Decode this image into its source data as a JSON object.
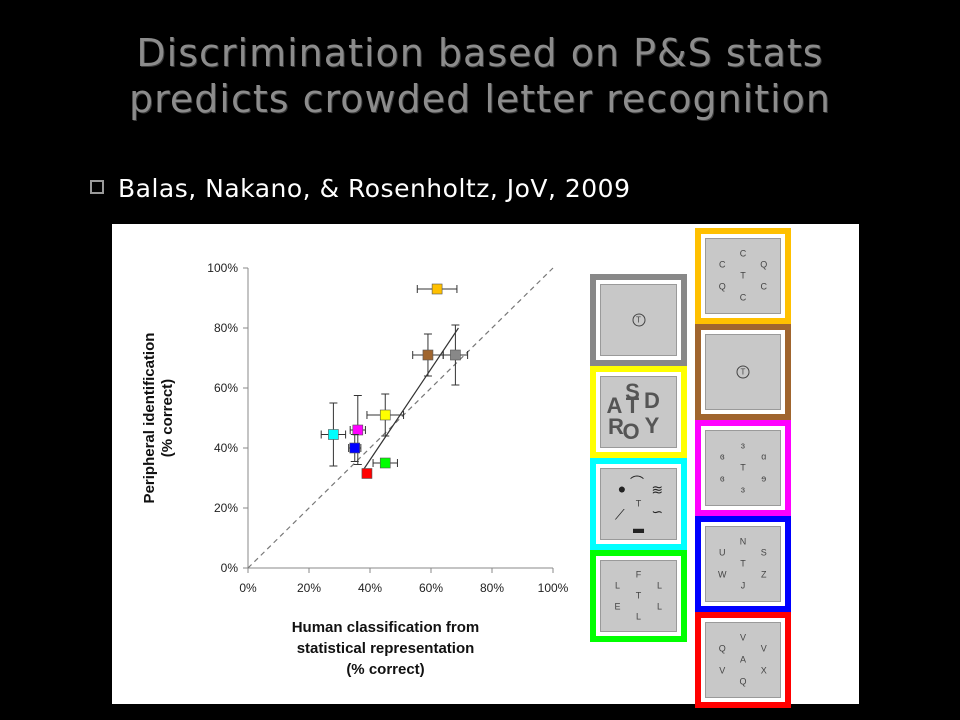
{
  "slide": {
    "title_line1": "Discrimination based on P&S stats",
    "title_line2": "predicts crowded letter recognition",
    "bullet": "Balas, Nakano, & Rosenholtz, JoV, 2009"
  },
  "chart_data": {
    "type": "scatter",
    "title": "",
    "xlabel_lines": [
      "Human classification from",
      "statistical representation",
      "(% correct)"
    ],
    "ylabel_lines": [
      "Peripheral identification",
      "(% correct)"
    ],
    "xlim": [
      0,
      100
    ],
    "ylim": [
      0,
      100
    ],
    "x_ticks": [
      "0%",
      "20%",
      "40%",
      "60%",
      "80%",
      "100%"
    ],
    "y_ticks": [
      "0%",
      "20%",
      "40%",
      "60%",
      "80%",
      "100%"
    ],
    "grid": false,
    "diagonal_reference": true,
    "fit_line": {
      "x": [
        38,
        69
      ],
      "y": [
        33,
        80
      ]
    },
    "points": [
      {
        "color": "#ffc000",
        "x": 62,
        "y": 93,
        "xerr": 6.5,
        "yerr": 0
      },
      {
        "color": "#a0652e",
        "x": 59,
        "y": 71,
        "xerr": 5,
        "yerr": 7
      },
      {
        "color": "#888888",
        "x": 68,
        "y": 71,
        "xerr": 4,
        "yerr": 10
      },
      {
        "color": "#ffff00",
        "x": 45,
        "y": 51,
        "xerr": 6,
        "yerr": 7
      },
      {
        "color": "#00ffff",
        "x": 28,
        "y": 44.5,
        "xerr": 4,
        "yerr": 10.5
      },
      {
        "color": "#ff00ff",
        "x": 36,
        "y": 46,
        "xerr": 2.5,
        "yerr": 11.5
      },
      {
        "color": "#0000ff",
        "x": 35,
        "y": 40,
        "xerr": 2,
        "yerr": 4.5
      },
      {
        "color": "#00ff00",
        "x": 45,
        "y": 35,
        "xerr": 4,
        "yerr": 0
      },
      {
        "color": "#ff0000",
        "x": 39,
        "y": 31.5,
        "xerr": 1.5,
        "yerr": 1.2
      }
    ]
  },
  "stimulus_tiles": {
    "left": [
      {
        "border": "#888888",
        "glyphs": [
          {
            "t": "T",
            "x": 50,
            "y": 50,
            "circled": true
          }
        ]
      },
      {
        "border": "#ffff00",
        "big": true,
        "glyphs": [
          {
            "t": "S",
            "x": 42,
            "y": 22
          },
          {
            "t": "A",
            "x": 18,
            "y": 42
          },
          {
            "t": "T",
            "x": 42,
            "y": 42
          },
          {
            "t": "D",
            "x": 68,
            "y": 34
          },
          {
            "t": "R",
            "x": 20,
            "y": 72
          },
          {
            "t": "O",
            "x": 40,
            "y": 78
          },
          {
            "t": "Y",
            "x": 68,
            "y": 70
          }
        ]
      },
      {
        "border": "#00ffff",
        "scribbles": true,
        "glyphs": [
          {
            "t": "●",
            "x": 28,
            "y": 28
          },
          {
            "t": "⌒",
            "x": 48,
            "y": 20
          },
          {
            "t": "≋",
            "x": 75,
            "y": 30
          },
          {
            "t": "T",
            "x": 50,
            "y": 50
          },
          {
            "t": "⟋",
            "x": 25,
            "y": 65
          },
          {
            "t": "∽",
            "x": 75,
            "y": 62
          },
          {
            "t": "▂",
            "x": 50,
            "y": 80
          }
        ]
      },
      {
        "border": "#00ff00",
        "glyphs": [
          {
            "t": "F",
            "x": 50,
            "y": 20
          },
          {
            "t": "L",
            "x": 22,
            "y": 35
          },
          {
            "t": "L",
            "x": 78,
            "y": 35
          },
          {
            "t": "T",
            "x": 50,
            "y": 50
          },
          {
            "t": "E",
            "x": 22,
            "y": 65
          },
          {
            "t": "L",
            "x": 78,
            "y": 65
          },
          {
            "t": "L",
            "x": 50,
            "y": 80
          }
        ]
      }
    ],
    "right": [
      {
        "border": "#ffc000",
        "glyphs": [
          {
            "t": "C",
            "x": 50,
            "y": 20
          },
          {
            "t": "C",
            "x": 22,
            "y": 35
          },
          {
            "t": "Q",
            "x": 78,
            "y": 35
          },
          {
            "t": "T",
            "x": 50,
            "y": 50
          },
          {
            "t": "Q",
            "x": 22,
            "y": 65
          },
          {
            "t": "C",
            "x": 78,
            "y": 65
          },
          {
            "t": "C",
            "x": 50,
            "y": 80
          }
        ]
      },
      {
        "border": "#a0652e",
        "glyphs": [
          {
            "t": "T",
            "x": 50,
            "y": 50,
            "circled": true
          }
        ]
      },
      {
        "border": "#ff00ff",
        "glyphs": [
          {
            "t": "ɜ",
            "x": 50,
            "y": 20
          },
          {
            "t": "ɞ",
            "x": 22,
            "y": 35
          },
          {
            "t": "ɑ",
            "x": 78,
            "y": 35
          },
          {
            "t": "T",
            "x": 50,
            "y": 50
          },
          {
            "t": "ɞ",
            "x": 22,
            "y": 65
          },
          {
            "t": "ɘ",
            "x": 78,
            "y": 65
          },
          {
            "t": "ɜ",
            "x": 50,
            "y": 80
          }
        ]
      },
      {
        "border": "#0000ff",
        "glyphs": [
          {
            "t": "N",
            "x": 50,
            "y": 20
          },
          {
            "t": "U",
            "x": 22,
            "y": 35
          },
          {
            "t": "S",
            "x": 78,
            "y": 35
          },
          {
            "t": "T",
            "x": 50,
            "y": 50
          },
          {
            "t": "W",
            "x": 22,
            "y": 65
          },
          {
            "t": "Z",
            "x": 78,
            "y": 65
          },
          {
            "t": "J",
            "x": 50,
            "y": 80
          }
        ]
      },
      {
        "border": "#ff0000",
        "glyphs": [
          {
            "t": "V",
            "x": 50,
            "y": 20
          },
          {
            "t": "Q",
            "x": 22,
            "y": 35
          },
          {
            "t": "V",
            "x": 78,
            "y": 35
          },
          {
            "t": "A",
            "x": 50,
            "y": 50
          },
          {
            "t": "V",
            "x": 22,
            "y": 65
          },
          {
            "t": "X",
            "x": 78,
            "y": 65
          },
          {
            "t": "Q",
            "x": 50,
            "y": 80
          }
        ]
      }
    ]
  }
}
